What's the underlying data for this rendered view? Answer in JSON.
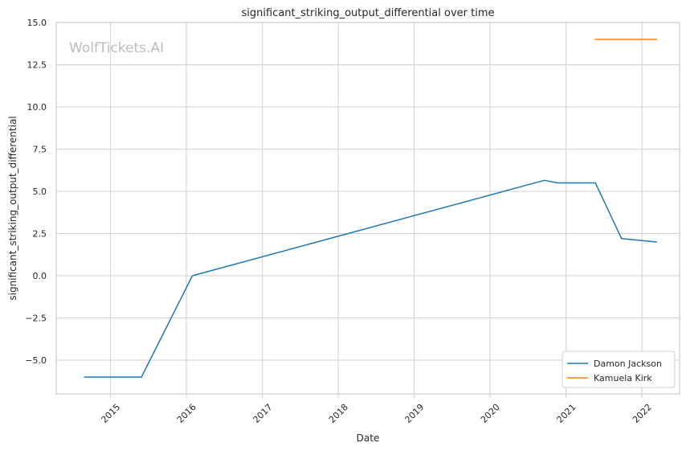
{
  "chart_data": {
    "type": "line",
    "title": "significant_striking_output_differential over time",
    "xlabel": "Date",
    "ylabel": "significant_striking_output_differential",
    "watermark": "WolfTickets.AI",
    "xlim": [
      "2014-04-15",
      "2022-07-01"
    ],
    "ylim": [
      -7.0,
      15.0
    ],
    "x_ticks": [
      "2015",
      "2016",
      "2017",
      "2018",
      "2019",
      "2020",
      "2021",
      "2022"
    ],
    "y_ticks": [
      "15.0",
      "12.5",
      "10.0",
      "7.5",
      "5.0",
      "2.5",
      "0.0",
      "−2.5",
      "−5.0"
    ],
    "y_tick_values": [
      15.0,
      12.5,
      10.0,
      7.5,
      5.0,
      2.5,
      0.0,
      -2.5,
      -5.0
    ],
    "grid": true,
    "legend_position": "lower-right",
    "series": [
      {
        "name": "Damon Jackson",
        "color": "#1f77b4",
        "points": [
          {
            "x": "2014-08-30",
            "y": -6.0
          },
          {
            "x": "2015-05-30",
            "y": -6.0
          },
          {
            "x": "2016-01-30",
            "y": 0.0
          },
          {
            "x": "2020-09-19",
            "y": 5.65
          },
          {
            "x": "2020-11-21",
            "y": 5.5
          },
          {
            "x": "2021-05-22",
            "y": 5.5
          },
          {
            "x": "2021-09-25",
            "y": 2.2
          },
          {
            "x": "2022-03-12",
            "y": 2.0
          }
        ]
      },
      {
        "name": "Kamuela Kirk",
        "color": "#ff7f0e",
        "points": [
          {
            "x": "2021-05-22",
            "y": 14.0
          },
          {
            "x": "2022-03-12",
            "y": 14.0
          }
        ]
      }
    ]
  }
}
